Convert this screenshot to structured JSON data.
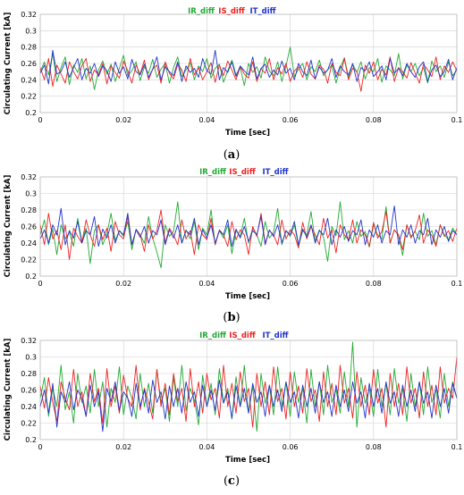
{
  "chart_data": [
    {
      "type": "line",
      "panel_label": "a",
      "xlabel": "Time [sec]",
      "ylabel": "Circulating Current [kA]",
      "xlim": [
        0,
        0.1
      ],
      "ylim": [
        0.2,
        0.32
      ],
      "x_ticks": [
        "0",
        "0.02",
        "0.04",
        "0.06",
        "0.08",
        "0.1"
      ],
      "y_ticks": [
        "0.2",
        "0.22",
        "0.24",
        "0.26",
        "0.28",
        "0.3",
        "0.32"
      ],
      "grid": true,
      "legend_position": "top-center",
      "x_step": 0.001,
      "series": [
        {
          "name": "IR_diff",
          "color": "#22aa33",
          "values": [
            0.25,
            0.262,
            0.246,
            0.272,
            0.238,
            0.255,
            0.268,
            0.234,
            0.258,
            0.249,
            0.266,
            0.241,
            0.257,
            0.228,
            0.252,
            0.263,
            0.247,
            0.259,
            0.238,
            0.254,
            0.27,
            0.245,
            0.251,
            0.262,
            0.239,
            0.256,
            0.248,
            0.265,
            0.243,
            0.253,
            0.26,
            0.236,
            0.255,
            0.268,
            0.244,
            0.252,
            0.261,
            0.24,
            0.257,
            0.25,
            0.266,
            0.242,
            0.254,
            0.259,
            0.237,
            0.251,
            0.264,
            0.246,
            0.255,
            0.233,
            0.26,
            0.249,
            0.256,
            0.242,
            0.268,
            0.251,
            0.245,
            0.262,
            0.238,
            0.257,
            0.28,
            0.244,
            0.253,
            0.26,
            0.24,
            0.256,
            0.25,
            0.264,
            0.245,
            0.252,
            0.258,
            0.236,
            0.254,
            0.267,
            0.243,
            0.259,
            0.249,
            0.262,
            0.241,
            0.255,
            0.25,
            0.266,
            0.237,
            0.257,
            0.252,
            0.245,
            0.272,
            0.241,
            0.258,
            0.25,
            0.26,
            0.245,
            0.255,
            0.236,
            0.263,
            0.25,
            0.257,
            0.243,
            0.262,
            0.245,
            0.252
          ]
        },
        {
          "name": "IS_diff",
          "color": "#ee2222",
          "values": [
            0.255,
            0.24,
            0.266,
            0.232,
            0.258,
            0.247,
            0.236,
            0.262,
            0.25,
            0.241,
            0.257,
            0.266,
            0.238,
            0.252,
            0.246,
            0.26,
            0.235,
            0.257,
            0.249,
            0.242,
            0.263,
            0.251,
            0.236,
            0.258,
            0.247,
            0.264,
            0.24,
            0.253,
            0.258,
            0.236,
            0.262,
            0.248,
            0.241,
            0.259,
            0.252,
            0.238,
            0.266,
            0.246,
            0.255,
            0.24,
            0.25,
            0.261,
            0.237,
            0.258,
            0.245,
            0.263,
            0.252,
            0.24,
            0.256,
            0.247,
            0.242,
            0.262,
            0.238,
            0.254,
            0.248,
            0.266,
            0.24,
            0.255,
            0.247,
            0.26,
            0.238,
            0.251,
            0.256,
            0.243,
            0.262,
            0.247,
            0.241,
            0.258,
            0.253,
            0.236,
            0.26,
            0.249,
            0.245,
            0.266,
            0.24,
            0.254,
            0.25,
            0.226,
            0.258,
            0.248,
            0.262,
            0.24,
            0.253,
            0.246,
            0.268,
            0.238,
            0.255,
            0.25,
            0.242,
            0.261,
            0.248,
            0.236,
            0.259,
            0.252,
            0.244,
            0.268,
            0.24,
            0.257,
            0.249,
            0.262,
            0.251
          ]
        },
        {
          "name": "IT_diff",
          "color": "#2233cc",
          "values": [
            0.248,
            0.258,
            0.235,
            0.276,
            0.247,
            0.25,
            0.262,
            0.243,
            0.255,
            0.266,
            0.24,
            0.254,
            0.248,
            0.26,
            0.244,
            0.257,
            0.251,
            0.238,
            0.262,
            0.248,
            0.256,
            0.241,
            0.265,
            0.25,
            0.246,
            0.259,
            0.243,
            0.253,
            0.268,
            0.24,
            0.256,
            0.25,
            0.245,
            0.262,
            0.238,
            0.257,
            0.249,
            0.254,
            0.243,
            0.266,
            0.251,
            0.247,
            0.276,
            0.24,
            0.255,
            0.249,
            0.262,
            0.244,
            0.257,
            0.251,
            0.246,
            0.268,
            0.241,
            0.254,
            0.259,
            0.243,
            0.252,
            0.246,
            0.263,
            0.248,
            0.254,
            0.24,
            0.26,
            0.25,
            0.245,
            0.264,
            0.241,
            0.256,
            0.248,
            0.252,
            0.266,
            0.243,
            0.257,
            0.25,
            0.246,
            0.26,
            0.238,
            0.255,
            0.251,
            0.262,
            0.244,
            0.25,
            0.257,
            0.24,
            0.266,
            0.248,
            0.254,
            0.245,
            0.26,
            0.25,
            0.243,
            0.256,
            0.262,
            0.238,
            0.252,
            0.258,
            0.244,
            0.25,
            0.265,
            0.24,
            0.255
          ]
        }
      ]
    },
    {
      "type": "line",
      "panel_label": "b",
      "xlabel": "Time [sec]",
      "ylabel": "Circulating Current [kA]",
      "xlim": [
        0,
        0.1
      ],
      "ylim": [
        0.2,
        0.32
      ],
      "x_ticks": [
        "0",
        "0.02",
        "0.04",
        "0.06",
        "0.08",
        "0.1"
      ],
      "y_ticks": [
        "0.2",
        "0.22",
        "0.24",
        "0.26",
        "0.28",
        "0.3",
        "0.32"
      ],
      "grid": true,
      "legend_position": "top-center",
      "x_step": 0.001,
      "series": [
        {
          "name": "IR_diff",
          "color": "#22aa33",
          "values": [
            0.25,
            0.268,
            0.238,
            0.257,
            0.226,
            0.262,
            0.245,
            0.253,
            0.236,
            0.27,
            0.242,
            0.258,
            0.215,
            0.255,
            0.262,
            0.238,
            0.251,
            0.276,
            0.243,
            0.255,
            0.248,
            0.266,
            0.232,
            0.257,
            0.25,
            0.24,
            0.272,
            0.246,
            0.229,
            0.21,
            0.262,
            0.248,
            0.254,
            0.29,
            0.24,
            0.256,
            0.245,
            0.266,
            0.232,
            0.258,
            0.25,
            0.28,
            0.238,
            0.255,
            0.246,
            0.262,
            0.227,
            0.255,
            0.248,
            0.27,
            0.24,
            0.258,
            0.25,
            0.236,
            0.266,
            0.246,
            0.253,
            0.282,
            0.238,
            0.255,
            0.248,
            0.262,
            0.236,
            0.255,
            0.25,
            0.278,
            0.242,
            0.256,
            0.247,
            0.218,
            0.26,
            0.249,
            0.29,
            0.244,
            0.255,
            0.24,
            0.266,
            0.248,
            0.254,
            0.235,
            0.262,
            0.25,
            0.245,
            0.284,
            0.24,
            0.256,
            0.249,
            0.225,
            0.262,
            0.248,
            0.254,
            0.244,
            0.276,
            0.248,
            0.255,
            0.238,
            0.262,
            0.25,
            0.244,
            0.258,
            0.25
          ]
        },
        {
          "name": "IS_diff",
          "color": "#ee2222",
          "values": [
            0.262,
            0.238,
            0.276,
            0.245,
            0.255,
            0.232,
            0.262,
            0.22,
            0.258,
            0.248,
            0.24,
            0.268,
            0.25,
            0.236,
            0.262,
            0.244,
            0.258,
            0.23,
            0.266,
            0.25,
            0.245,
            0.272,
            0.238,
            0.256,
            0.25,
            0.23,
            0.262,
            0.245,
            0.255,
            0.28,
            0.24,
            0.258,
            0.25,
            0.238,
            0.268,
            0.245,
            0.255,
            0.226,
            0.262,
            0.25,
            0.244,
            0.27,
            0.238,
            0.256,
            0.25,
            0.236,
            0.266,
            0.244,
            0.256,
            0.25,
            0.226,
            0.26,
            0.248,
            0.276,
            0.24,
            0.255,
            0.25,
            0.238,
            0.268,
            0.245,
            0.256,
            0.25,
            0.234,
            0.265,
            0.245,
            0.26,
            0.25,
            0.238,
            0.27,
            0.246,
            0.256,
            0.228,
            0.262,
            0.25,
            0.244,
            0.268,
            0.24,
            0.256,
            0.25,
            0.236,
            0.265,
            0.246,
            0.254,
            0.278,
            0.24,
            0.256,
            0.25,
            0.232,
            0.262,
            0.246,
            0.255,
            0.274,
            0.24,
            0.256,
            0.249,
            0.236,
            0.262,
            0.248,
            0.255,
            0.242,
            0.258
          ]
        },
        {
          "name": "IT_diff",
          "color": "#2233cc",
          "values": [
            0.245,
            0.256,
            0.24,
            0.262,
            0.25,
            0.282,
            0.238,
            0.255,
            0.246,
            0.266,
            0.24,
            0.255,
            0.25,
            0.272,
            0.236,
            0.257,
            0.246,
            0.262,
            0.24,
            0.255,
            0.25,
            0.276,
            0.238,
            0.256,
            0.247,
            0.26,
            0.24,
            0.255,
            0.25,
            0.268,
            0.238,
            0.256,
            0.246,
            0.262,
            0.24,
            0.255,
            0.25,
            0.27,
            0.238,
            0.256,
            0.246,
            0.262,
            0.24,
            0.255,
            0.25,
            0.268,
            0.236,
            0.257,
            0.246,
            0.26,
            0.242,
            0.255,
            0.25,
            0.272,
            0.238,
            0.256,
            0.248,
            0.262,
            0.24,
            0.255,
            0.25,
            0.266,
            0.238,
            0.257,
            0.247,
            0.262,
            0.24,
            0.255,
            0.25,
            0.27,
            0.238,
            0.256,
            0.247,
            0.26,
            0.242,
            0.255,
            0.25,
            0.268,
            0.238,
            0.256,
            0.247,
            0.262,
            0.24,
            0.255,
            0.25,
            0.285,
            0.238,
            0.256,
            0.247,
            0.262,
            0.24,
            0.255,
            0.25,
            0.27,
            0.238,
            0.256,
            0.247,
            0.26,
            0.242,
            0.255,
            0.25
          ]
        }
      ]
    },
    {
      "type": "line",
      "panel_label": "c",
      "xlabel": "Time [sec]",
      "ylabel": "Circulating Current [kA]",
      "xlim": [
        0,
        0.1
      ],
      "ylim": [
        0.2,
        0.32
      ],
      "x_ticks": [
        "0",
        "0.02",
        "0.04",
        "0.06",
        "0.08",
        "0.1"
      ],
      "y_ticks": [
        "0.2",
        "0.22",
        "0.24",
        "0.26",
        "0.28",
        "0.3",
        "0.32"
      ],
      "grid": true,
      "legend_position": "top-center",
      "x_step": 0.001,
      "series": [
        {
          "name": "IR_diff",
          "color": "#22aa33",
          "values": [
            0.25,
            0.275,
            0.228,
            0.262,
            0.24,
            0.29,
            0.236,
            0.258,
            0.22,
            0.28,
            0.245,
            0.265,
            0.232,
            0.285,
            0.24,
            0.27,
            0.215,
            0.262,
            0.245,
            0.288,
            0.23,
            0.265,
            0.25,
            0.225,
            0.28,
            0.24,
            0.268,
            0.232,
            0.285,
            0.245,
            0.262,
            0.222,
            0.275,
            0.24,
            0.29,
            0.235,
            0.262,
            0.248,
            0.218,
            0.278,
            0.24,
            0.268,
            0.23,
            0.286,
            0.245,
            0.262,
            0.225,
            0.276,
            0.24,
            0.29,
            0.232,
            0.265,
            0.21,
            0.28,
            0.244,
            0.265,
            0.23,
            0.288,
            0.24,
            0.27,
            0.228,
            0.282,
            0.245,
            0.262,
            0.22,
            0.285,
            0.24,
            0.27,
            0.23,
            0.29,
            0.245,
            0.26,
            0.232,
            0.282,
            0.24,
            0.318,
            0.215,
            0.275,
            0.244,
            0.262,
            0.228,
            0.285,
            0.24,
            0.268,
            0.23,
            0.286,
            0.244,
            0.262,
            0.222,
            0.28,
            0.24,
            0.27,
            0.23,
            0.288,
            0.245,
            0.26,
            0.226,
            0.28,
            0.24,
            0.27,
            0.25
          ]
        },
        {
          "name": "IS_diff",
          "color": "#ee2222",
          "values": [
            0.265,
            0.238,
            0.275,
            0.245,
            0.222,
            0.27,
            0.25,
            0.236,
            0.285,
            0.24,
            0.258,
            0.228,
            0.28,
            0.246,
            0.262,
            0.22,
            0.286,
            0.24,
            0.265,
            0.232,
            0.278,
            0.25,
            0.24,
            0.29,
            0.236,
            0.262,
            0.245,
            0.225,
            0.285,
            0.24,
            0.268,
            0.23,
            0.28,
            0.246,
            0.262,
            0.222,
            0.286,
            0.24,
            0.27,
            0.232,
            0.28,
            0.248,
            0.262,
            0.226,
            0.29,
            0.24,
            0.268,
            0.232,
            0.282,
            0.246,
            0.262,
            0.215,
            0.28,
            0.24,
            0.27,
            0.23,
            0.288,
            0.246,
            0.262,
            0.225,
            0.282,
            0.24,
            0.265,
            0.232,
            0.286,
            0.246,
            0.26,
            0.222,
            0.282,
            0.24,
            0.268,
            0.23,
            0.29,
            0.244,
            0.262,
            0.226,
            0.282,
            0.24,
            0.266,
            0.23,
            0.285,
            0.244,
            0.262,
            0.215,
            0.28,
            0.24,
            0.268,
            0.23,
            0.288,
            0.244,
            0.262,
            0.226,
            0.282,
            0.24,
            0.266,
            0.23,
            0.288,
            0.244,
            0.262,
            0.25,
            0.3
          ]
        },
        {
          "name": "IT_diff",
          "color": "#2233cc",
          "values": [
            0.24,
            0.26,
            0.232,
            0.268,
            0.215,
            0.258,
            0.245,
            0.27,
            0.236,
            0.26,
            0.25,
            0.228,
            0.266,
            0.24,
            0.258,
            0.21,
            0.262,
            0.246,
            0.27,
            0.235,
            0.258,
            0.25,
            0.228,
            0.268,
            0.24,
            0.26,
            0.232,
            0.272,
            0.245,
            0.258,
            0.225,
            0.265,
            0.24,
            0.262,
            0.232,
            0.27,
            0.245,
            0.258,
            0.228,
            0.266,
            0.24,
            0.26,
            0.235,
            0.272,
            0.244,
            0.258,
            0.226,
            0.265,
            0.24,
            0.262,
            0.232,
            0.268,
            0.245,
            0.258,
            0.228,
            0.266,
            0.24,
            0.26,
            0.234,
            0.27,
            0.245,
            0.258,
            0.226,
            0.266,
            0.24,
            0.262,
            0.232,
            0.27,
            0.245,
            0.258,
            0.228,
            0.266,
            0.24,
            0.26,
            0.234,
            0.27,
            0.244,
            0.258,
            0.226,
            0.268,
            0.24,
            0.262,
            0.232,
            0.27,
            0.244,
            0.258,
            0.228,
            0.266,
            0.24,
            0.26,
            0.234,
            0.27,
            0.244,
            0.258,
            0.226,
            0.266,
            0.24,
            0.262,
            0.232,
            0.268,
            0.25
          ]
        }
      ]
    }
  ]
}
